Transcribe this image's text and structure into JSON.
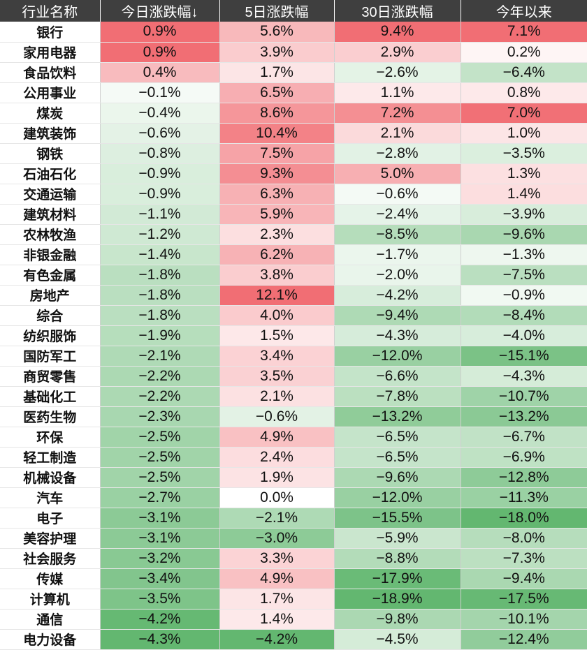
{
  "colors": {
    "header_bg": "#3f3f3f",
    "header_text": "#ffffff",
    "positive": "#f0686e",
    "negative": "#5cb46a",
    "neutral": "#ffffff"
  },
  "headers": [
    "行业名称",
    "今日涨跌幅↓",
    "5日涨跌幅",
    "30日涨跌幅",
    "今年以来"
  ],
  "rows": [
    {
      "name": "银行",
      "values": [
        0.9,
        5.6,
        9.4,
        7.1
      ],
      "labels": [
        "0.9%",
        "5.6%",
        "9.4%",
        "7.1%"
      ]
    },
    {
      "name": "家用电器",
      "values": [
        0.9,
        3.9,
        2.9,
        0.2
      ],
      "labels": [
        "0.9%",
        "3.9%",
        "2.9%",
        "0.2%"
      ]
    },
    {
      "name": "食品饮料",
      "values": [
        0.4,
        1.7,
        -2.6,
        -6.4
      ],
      "labels": [
        "0.4%",
        "1.7%",
        "−2.6%",
        "−6.4%"
      ]
    },
    {
      "name": "公用事业",
      "values": [
        -0.1,
        6.5,
        1.1,
        0.8
      ],
      "labels": [
        "−0.1%",
        "6.5%",
        "1.1%",
        "0.8%"
      ]
    },
    {
      "name": "煤炭",
      "values": [
        -0.4,
        8.6,
        7.2,
        7.0
      ],
      "labels": [
        "−0.4%",
        "8.6%",
        "7.2%",
        "7.0%"
      ]
    },
    {
      "name": "建筑装饰",
      "values": [
        -0.6,
        10.4,
        2.1,
        1.0
      ],
      "labels": [
        "−0.6%",
        "10.4%",
        "2.1%",
        "1.0%"
      ]
    },
    {
      "name": "钢铁",
      "values": [
        -0.8,
        7.5,
        -2.8,
        -3.5
      ],
      "labels": [
        "−0.8%",
        "7.5%",
        "−2.8%",
        "−3.5%"
      ]
    },
    {
      "name": "石油石化",
      "values": [
        -0.9,
        9.3,
        5.0,
        1.3
      ],
      "labels": [
        "−0.9%",
        "9.3%",
        "5.0%",
        "1.3%"
      ]
    },
    {
      "name": "交通运输",
      "values": [
        -0.9,
        6.3,
        -0.6,
        1.4
      ],
      "labels": [
        "−0.9%",
        "6.3%",
        "−0.6%",
        "1.4%"
      ]
    },
    {
      "name": "建筑材料",
      "values": [
        -1.1,
        5.9,
        -2.4,
        -3.9
      ],
      "labels": [
        "−1.1%",
        "5.9%",
        "−2.4%",
        "−3.9%"
      ]
    },
    {
      "name": "农林牧渔",
      "values": [
        -1.2,
        2.3,
        -8.5,
        -9.6
      ],
      "labels": [
        "−1.2%",
        "2.3%",
        "−8.5%",
        "−9.6%"
      ]
    },
    {
      "name": "非银金融",
      "values": [
        -1.4,
        6.2,
        -1.7,
        -1.3
      ],
      "labels": [
        "−1.4%",
        "6.2%",
        "−1.7%",
        "−1.3%"
      ]
    },
    {
      "name": "有色金属",
      "values": [
        -1.8,
        3.8,
        -2.0,
        -7.5
      ],
      "labels": [
        "−1.8%",
        "3.8%",
        "−2.0%",
        "−7.5%"
      ]
    },
    {
      "name": "房地产",
      "values": [
        -1.8,
        12.1,
        -4.2,
        -0.9
      ],
      "labels": [
        "−1.8%",
        "12.1%",
        "−4.2%",
        "−0.9%"
      ]
    },
    {
      "name": "综合",
      "values": [
        -1.8,
        4.0,
        -9.4,
        -8.4
      ],
      "labels": [
        "−1.8%",
        "4.0%",
        "−9.4%",
        "−8.4%"
      ]
    },
    {
      "name": "纺织服饰",
      "values": [
        -1.9,
        1.5,
        -4.3,
        -4.0
      ],
      "labels": [
        "−1.9%",
        "1.5%",
        "−4.3%",
        "−4.0%"
      ]
    },
    {
      "name": "国防军工",
      "values": [
        -2.1,
        3.4,
        -12.0,
        -15.1
      ],
      "labels": [
        "−2.1%",
        "3.4%",
        "−12.0%",
        "−15.1%"
      ]
    },
    {
      "name": "商贸零售",
      "values": [
        -2.2,
        3.5,
        -6.6,
        -4.3
      ],
      "labels": [
        "−2.2%",
        "3.5%",
        "−6.6%",
        "−4.3%"
      ]
    },
    {
      "name": "基础化工",
      "values": [
        -2.2,
        2.1,
        -7.8,
        -10.7
      ],
      "labels": [
        "−2.2%",
        "2.1%",
        "−7.8%",
        "−10.7%"
      ]
    },
    {
      "name": "医药生物",
      "values": [
        -2.3,
        -0.6,
        -13.2,
        -13.2
      ],
      "labels": [
        "−2.3%",
        "−0.6%",
        "−13.2%",
        "−13.2%"
      ]
    },
    {
      "name": "环保",
      "values": [
        -2.5,
        4.9,
        -6.5,
        -6.7
      ],
      "labels": [
        "−2.5%",
        "4.9%",
        "−6.5%",
        "−6.7%"
      ]
    },
    {
      "name": "轻工制造",
      "values": [
        -2.5,
        2.4,
        -6.5,
        -6.9
      ],
      "labels": [
        "−2.5%",
        "2.4%",
        "−6.5%",
        "−6.9%"
      ]
    },
    {
      "name": "机械设备",
      "values": [
        -2.5,
        1.9,
        -9.6,
        -12.8
      ],
      "labels": [
        "−2.5%",
        "1.9%",
        "−9.6%",
        "−12.8%"
      ]
    },
    {
      "name": "汽车",
      "values": [
        -2.7,
        0.0,
        -12.0,
        -11.3
      ],
      "labels": [
        "−2.7%",
        "0.0%",
        "−12.0%",
        "−11.3%"
      ]
    },
    {
      "name": "电子",
      "values": [
        -3.1,
        -2.1,
        -15.5,
        -18.0
      ],
      "labels": [
        "−3.1%",
        "−2.1%",
        "−15.5%",
        "−18.0%"
      ]
    },
    {
      "name": "美容护理",
      "values": [
        -3.1,
        -3.0,
        -5.9,
        -8.0
      ],
      "labels": [
        "−3.1%",
        "−3.0%",
        "−5.9%",
        "−8.0%"
      ]
    },
    {
      "name": "社会服务",
      "values": [
        -3.2,
        3.3,
        -8.8,
        -7.3
      ],
      "labels": [
        "−3.2%",
        "3.3%",
        "−8.8%",
        "−7.3%"
      ]
    },
    {
      "name": "传媒",
      "values": [
        -3.4,
        4.9,
        -17.9,
        -9.4
      ],
      "labels": [
        "−3.4%",
        "4.9%",
        "−17.9%",
        "−9.4%"
      ]
    },
    {
      "name": "计算机",
      "values": [
        -3.5,
        1.7,
        -18.9,
        -17.5
      ],
      "labels": [
        "−3.5%",
        "1.7%",
        "−18.9%",
        "−17.5%"
      ]
    },
    {
      "name": "通信",
      "values": [
        -4.2,
        1.4,
        -9.8,
        -10.1
      ],
      "labels": [
        "−4.2%",
        "1.4%",
        "−9.8%",
        "−10.1%"
      ]
    },
    {
      "name": "电力设备",
      "values": [
        -4.3,
        -4.2,
        -4.5,
        -12.4
      ],
      "labels": [
        "−4.3%",
        "−4.2%",
        "−4.5%",
        "−12.4%"
      ]
    }
  ]
}
